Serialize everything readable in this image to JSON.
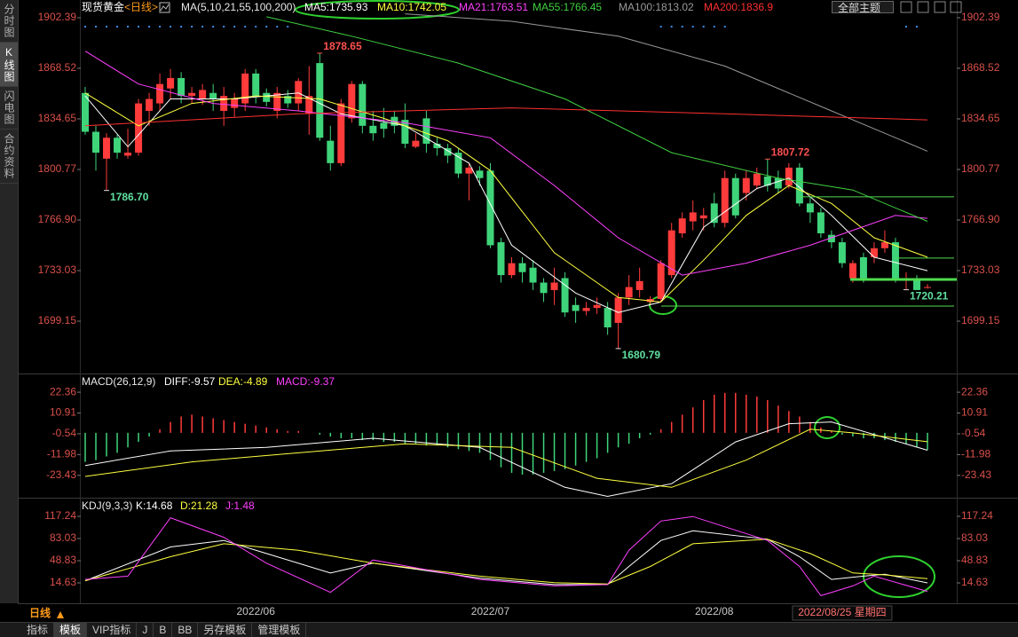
{
  "ui": {
    "sidebar": [
      "分时图",
      "K线图",
      "闪电图",
      "合约资料"
    ],
    "active_sidebar_tab": 1,
    "theme_button": "全部主题",
    "period_button": "日线",
    "bottom_tabs": [
      "指标",
      "模板",
      "VIP指标",
      "J",
      "B",
      "BB",
      "另存模板",
      "管理模板"
    ],
    "active_bottom_tab": 1
  },
  "chart_data": [
    {
      "type": "candlestick",
      "title": "现货黄金",
      "period": "<日线>",
      "indicator": "MA(5,10,21,55,100,200)",
      "categories": [
        null,
        null,
        null,
        null,
        null,
        null,
        null,
        null,
        null,
        null,
        null,
        null,
        null,
        null,
        null,
        null,
        "2022/06",
        null,
        null,
        null,
        null,
        null,
        null,
        null,
        null,
        null,
        null,
        null,
        null,
        null,
        null,
        null,
        null,
        null,
        null,
        null,
        null,
        null,
        "2022/07",
        null,
        null,
        null,
        null,
        null,
        null,
        null,
        null,
        null,
        null,
        null,
        null,
        null,
        null,
        null,
        null,
        null,
        null,
        null,
        null,
        "2022/08",
        null,
        null,
        null,
        null,
        null,
        null,
        null,
        null,
        null,
        null,
        null,
        "2022/08/25 星期四",
        null,
        null,
        null,
        null,
        null,
        null,
        null,
        null
      ],
      "open": [
        1852,
        1826,
        1808,
        1822,
        1810,
        1812,
        1840,
        1845,
        1855,
        1862,
        1850,
        1848,
        1852,
        1840,
        1842,
        1845,
        1865,
        1852,
        1840,
        1850,
        1845,
        1838,
        1872,
        1820,
        1805,
        1835,
        1858,
        1830,
        1832,
        1836,
        1834,
        1816,
        1835,
        1818,
        1815,
        1812,
        1798,
        1800,
        1800,
        1752,
        1730,
        1738,
        1735,
        1725,
        1720,
        1728,
        1710,
        1706,
        1708,
        1708,
        1698,
        1715,
        1720,
        1712,
        1714,
        1730,
        1758,
        1766,
        1768,
        1778,
        1765,
        1795,
        1785,
        1790,
        1796,
        1795,
        1790,
        1802,
        1778,
        1772,
        1757,
        1752,
        1728,
        1742,
        1742,
        1748,
        1752,
        1727,
        1727,
        1722
      ],
      "close": [
        1826,
        1812,
        1822,
        1812,
        1812,
        1845,
        1848,
        1858,
        1862,
        1850,
        1852,
        1854,
        1848,
        1850,
        1848,
        1865,
        1850,
        1846,
        1852,
        1845,
        1860,
        1850,
        1822,
        1805,
        1845,
        1858,
        1830,
        1825,
        1828,
        1830,
        1818,
        1820,
        1818,
        1815,
        1810,
        1798,
        1802,
        1795,
        1750,
        1730,
        1738,
        1732,
        1725,
        1718,
        1725,
        1705,
        1706,
        1708,
        1710,
        1695,
        1715,
        1722,
        1726,
        1714,
        1738,
        1760,
        1768,
        1772,
        1770,
        1765,
        1795,
        1770,
        1795,
        1798,
        1790,
        1788,
        1802,
        1778,
        1772,
        1758,
        1752,
        1738,
        1738,
        1728,
        1748,
        1752,
        1728,
        1727,
        1720,
        1722
      ],
      "low": [
        1824,
        1800,
        1786.7,
        1808,
        1808,
        1810,
        1830,
        1840,
        1848,
        1845,
        1845,
        1844,
        1840,
        1830,
        1836,
        1840,
        1845,
        1843,
        1835,
        1842,
        1840,
        1824,
        1820,
        1800,
        1803,
        1832,
        1825,
        1820,
        1822,
        1825,
        1815,
        1815,
        1812,
        1810,
        1805,
        1795,
        1780,
        1790,
        1748,
        1725,
        1728,
        1725,
        1720,
        1712,
        1710,
        1702,
        1698,
        1703,
        1704,
        1690,
        1680.79,
        1710,
        1715,
        1710,
        1712,
        1728,
        1755,
        1760,
        1760,
        1762,
        1762,
        1768,
        1780,
        1788,
        1786,
        1785,
        1788,
        1776,
        1765,
        1755,
        1748,
        1735,
        1725,
        1725,
        1738,
        1745,
        1725,
        1720.21,
        1721,
        1721
      ],
      "high": [
        1856,
        1830,
        1825,
        1824,
        1828,
        1848,
        1852,
        1865,
        1868,
        1866,
        1856,
        1858,
        1858,
        1856,
        1852,
        1868,
        1868,
        1855,
        1856,
        1854,
        1862,
        1870,
        1878.65,
        1830,
        1848,
        1860,
        1860,
        1840,
        1842,
        1840,
        1845,
        1825,
        1840,
        1822,
        1818,
        1815,
        1805,
        1803,
        1805,
        1755,
        1742,
        1742,
        1740,
        1728,
        1735,
        1732,
        1715,
        1712,
        1715,
        1712,
        1718,
        1730,
        1735,
        1716,
        1740,
        1765,
        1772,
        1780,
        1775,
        1785,
        1800,
        1798,
        1800,
        1802,
        1807.72,
        1800,
        1805,
        1805,
        1782,
        1775,
        1760,
        1755,
        1740,
        1745,
        1752,
        1760,
        1755,
        1732,
        1730,
        1724
      ],
      "up_color": "#ff3b3b",
      "down_color": "#3fd47a",
      "series": [
        {
          "name": "MA5:1735.93",
          "color": "#ffffff",
          "x": [
            0,
            4,
            8,
            14,
            20,
            24,
            30,
            36,
            40,
            46,
            50,
            54,
            58,
            63,
            66,
            70,
            74,
            79
          ],
          "values": [
            1850,
            1816,
            1848,
            1848,
            1852,
            1838,
            1830,
            1805,
            1750,
            1718,
            1705,
            1712,
            1762,
            1788,
            1795,
            1770,
            1742,
            1733
          ]
        },
        {
          "name": "MA10:1742.05",
          "color": "#ffff40",
          "x": [
            0,
            5,
            10,
            16,
            22,
            28,
            34,
            38,
            44,
            50,
            54,
            58,
            62,
            66,
            70,
            74,
            79
          ],
          "values": [
            1852,
            1830,
            1845,
            1850,
            1848,
            1835,
            1820,
            1800,
            1745,
            1715,
            1712,
            1740,
            1770,
            1790,
            1778,
            1755,
            1742
          ]
        },
        {
          "name": "MA21:1763.51",
          "color": "#ff40ff",
          "x": [
            0,
            5,
            12,
            20,
            30,
            38,
            44,
            50,
            56,
            62,
            68,
            72,
            76,
            79
          ],
          "values": [
            1880,
            1858,
            1845,
            1840,
            1832,
            1822,
            1790,
            1755,
            1730,
            1738,
            1750,
            1760,
            1770,
            1768
          ]
        },
        {
          "name": "MA55:1766.45",
          "color": "#40d040",
          "x": [
            17,
            25,
            35,
            45,
            55,
            65,
            72,
            79
          ],
          "values": [
            1903,
            1890,
            1872,
            1848,
            1812,
            1795,
            1787,
            1766
          ]
        },
        {
          "name": "MA100:1813.02",
          "color": "#9a9a9a",
          "x": [
            30,
            40,
            50,
            60,
            70,
            79
          ],
          "values": [
            1905,
            1900,
            1890,
            1870,
            1840,
            1813
          ]
        },
        {
          "name": "MA200:1836.9",
          "color": "#ff3030",
          "x": [
            0,
            20,
            40,
            60,
            79
          ],
          "values": [
            1830,
            1838,
            1842,
            1838,
            1834
          ]
        }
      ],
      "annotations": [
        {
          "value": 1878.65,
          "label": "1878.65"
        },
        {
          "value": 1786.7,
          "label": "1786.70"
        },
        {
          "value": 1680.79,
          "label": "1680.79"
        },
        {
          "value": 1807.72,
          "label": "1807.72"
        },
        {
          "value": 1720.21,
          "label": "1720.21"
        }
      ],
      "levels": [
        1782.4,
        1741.4,
        1727.1,
        1709.3
      ],
      "level_color": "#4fdc4f",
      "ylim": [
        1664.7,
        1909.5
      ],
      "yticks": [
        1902.39,
        1868.52,
        1834.65,
        1800.77,
        {
          "value": 1766.9,
          "label": "1766.90"
        },
        1733.03,
        1699.15
      ]
    },
    {
      "type": "macd",
      "title": "MACD(26,12,9)",
      "up_color": "#ff3b3b",
      "down_color": "#3fd47a",
      "series": [
        {
          "name": "DIFF:-9.57",
          "color": "#ffffff",
          "x": [
            0,
            8,
            17,
            27,
            37,
            45,
            49,
            55,
            61,
            66,
            70,
            79
          ],
          "values": [
            -18,
            -10,
            -8,
            -3,
            -8,
            -30,
            -35,
            -28,
            -5,
            5,
            6,
            -9.57
          ]
        },
        {
          "name": "DEA:-4.89",
          "color": "#ffff40",
          "x": [
            0,
            10,
            20,
            30,
            40,
            48,
            55,
            62,
            68,
            72,
            79
          ],
          "values": [
            -24,
            -16,
            -11,
            -6,
            -8,
            -25,
            -30,
            -15,
            2,
            0,
            -4.89
          ]
        },
        {
          "name": "MACD:-9.37",
          "color": "#ff40ff",
          "style": "bars",
          "values": [
            -16,
            -15,
            -13,
            -11,
            -8,
            -5,
            -2,
            2,
            6,
            9,
            10,
            9,
            8,
            7,
            6,
            5,
            4,
            3,
            2,
            1,
            1,
            0,
            -1,
            -2,
            -3,
            -3,
            -4,
            -4,
            -5,
            -5,
            -6,
            -6,
            -7,
            -7,
            -8,
            -9,
            -10,
            -11,
            -15,
            -19,
            -22,
            -23,
            -23,
            -22,
            -21,
            -20,
            -18,
            -16,
            -14,
            -11,
            -8,
            -6,
            -3,
            -1,
            2,
            6,
            10,
            14,
            18,
            21,
            22,
            22,
            21,
            20,
            18,
            15,
            12,
            9,
            6,
            3,
            1,
            -1,
            -2,
            -3,
            -3,
            -4,
            -5,
            -6,
            -8,
            -9.37
          ]
        }
      ],
      "ylim": [
        -36.2,
        30.7
      ],
      "yticks": [
        22.36,
        10.91,
        -0.54,
        -11.98,
        -23.43
      ]
    },
    {
      "type": "kdj",
      "title": "KDJ(9,3,3)",
      "series": [
        {
          "name": "K:14.68",
          "color": "#ffffff",
          "x": [
            0,
            8,
            13,
            17,
            23,
            27,
            37,
            44,
            49,
            51,
            54,
            57,
            64,
            67,
            70,
            73,
            75,
            79
          ],
          "values": [
            18,
            70,
            80,
            60,
            30,
            45,
            22,
            12,
            12,
            40,
            80,
            95,
            82,
            55,
            20,
            25,
            28,
            14.68
          ]
        },
        {
          "name": "D:21.28",
          "color": "#ffff40",
          "x": [
            0,
            8,
            13,
            20,
            27,
            37,
            44,
            49,
            53,
            57,
            64,
            68,
            72,
            75,
            79
          ],
          "values": [
            18,
            55,
            75,
            65,
            45,
            25,
            15,
            13,
            40,
            75,
            82,
            60,
            30,
            27,
            21.28
          ]
        },
        {
          "name": "J:1.48",
          "color": "#ff40ff",
          "x": [
            0,
            4,
            8,
            13,
            17,
            23,
            27,
            37,
            44,
            49,
            51,
            54,
            57,
            64,
            67,
            69,
            72,
            74,
            79
          ],
          "values": [
            20,
            25,
            115,
            85,
            45,
            0,
            50,
            20,
            10,
            12,
            65,
            110,
            117,
            80,
            40,
            -5,
            10,
            25,
            1.48
          ]
        }
      ],
      "ylim": [
        -16.8,
        140.5
      ],
      "yticks": [
        117.24,
        83.03,
        48.83,
        14.63
      ]
    }
  ]
}
